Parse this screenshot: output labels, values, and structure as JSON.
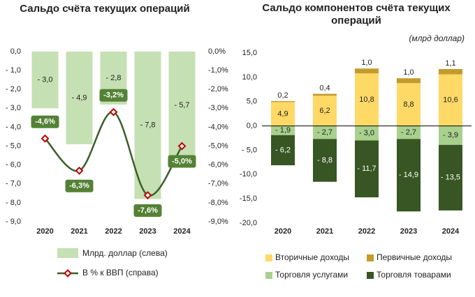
{
  "chart_data": [
    {
      "type": "combo",
      "title": "Сальдо счёта текущих операций",
      "categories": [
        "2020",
        "2021",
        "2022",
        "2023",
        "2024"
      ],
      "series": [
        {
          "name": "Млрд. доллар (слева)",
          "type": "bar",
          "color": "#c5e0b3",
          "values": [
            -3.0,
            -4.9,
            -2.8,
            -7.8,
            -5.7
          ],
          "value_labels": [
            "- 3,0",
            "- 4,9",
            "- 2,8",
            "- 7,8",
            "- 5,7"
          ]
        },
        {
          "name": "В % к ВВП (справа)",
          "type": "line",
          "axis": "y2",
          "color": "#3b5e2b",
          "marker_color": "#c00000",
          "label_color": "#548235",
          "values": [
            -4.6,
            -6.3,
            -3.2,
            -7.6,
            -5.0
          ],
          "value_labels": [
            "-4,6%",
            "-6,3%",
            "-3,2%",
            "-7,6%",
            "-5,0%"
          ]
        }
      ],
      "ylim": [
        -9,
        0
      ],
      "yticks": [
        {
          "value": 0,
          "label": "0,0"
        },
        {
          "value": -1,
          "label": "- 1,0"
        },
        {
          "value": -2,
          "label": "- 2,0"
        },
        {
          "value": -3,
          "label": "- 3,0"
        },
        {
          "value": -4,
          "label": "- 4,0"
        },
        {
          "value": -5,
          "label": "- 5,0"
        },
        {
          "value": -6,
          "label": "- 6,0"
        },
        {
          "value": -7,
          "label": "- 7,0"
        },
        {
          "value": -8,
          "label": "- 8,0"
        },
        {
          "value": -9,
          "label": "- 9,0"
        }
      ],
      "y2lim": [
        -9,
        0
      ],
      "y2ticks": [
        {
          "value": 0,
          "label": "0,0%"
        },
        {
          "value": -1,
          "label": "-1,0%"
        },
        {
          "value": -2,
          "label": "-2,0%"
        },
        {
          "value": -3,
          "label": "-3,0%"
        },
        {
          "value": -4,
          "label": "-4,0%"
        },
        {
          "value": -5,
          "label": "-5,0%"
        },
        {
          "value": -6,
          "label": "-6,0%"
        },
        {
          "value": -7,
          "label": "-7,0%"
        },
        {
          "value": -8,
          "label": "-8,0%"
        },
        {
          "value": -9,
          "label": "-9,0%"
        }
      ]
    },
    {
      "type": "stacked_bar",
      "title": "Сальдо компонентов счёта текущих операций",
      "subtitle": "(млрд доллар)",
      "categories": [
        "2020",
        "2021",
        "2022",
        "2023",
        "2024"
      ],
      "series": [
        {
          "name": "Вторичные доходы",
          "color": "#ffd966",
          "values": [
            4.9,
            6.2,
            10.8,
            8.8,
            10.6
          ],
          "value_labels": [
            "4,9",
            "6,2",
            "10,8",
            "8,8",
            "10,6"
          ]
        },
        {
          "name": "Первичные доходы",
          "color": "#c49a2c",
          "values": [
            0.2,
            0.4,
            1.0,
            1.0,
            1.1
          ],
          "value_labels": [
            "0,2",
            "0,4",
            "1,0",
            "1,0",
            "1,1"
          ]
        },
        {
          "name": "Торговля услугами",
          "color": "#a9d18e",
          "values": [
            -1.9,
            -2.7,
            -3.0,
            -2.7,
            -3.9
          ],
          "value_labels": [
            "- 1,9",
            "- 2,7",
            "- 3,0",
            "- 2,7",
            "- 3,9"
          ]
        },
        {
          "name": "Торговля товарами",
          "color": "#375623",
          "values": [
            -6.2,
            -8.8,
            -11.7,
            -14.9,
            -13.5
          ],
          "value_labels": [
            "- 6,2",
            "- 8,8",
            "- 11,7",
            "- 14,9",
            "- 13,5"
          ]
        }
      ],
      "ylim": [
        -20,
        15
      ],
      "yticks": [
        {
          "value": 15,
          "label": "15,0"
        },
        {
          "value": 10,
          "label": "10,0"
        },
        {
          "value": 5,
          "label": "5,0"
        },
        {
          "value": 0,
          "label": "0,0"
        },
        {
          "value": -5,
          "label": "- 5,0"
        },
        {
          "value": -10,
          "label": "-10,0"
        },
        {
          "value": -15,
          "label": "-15,0"
        },
        {
          "value": -20,
          "label": "-20,0"
        }
      ]
    }
  ]
}
